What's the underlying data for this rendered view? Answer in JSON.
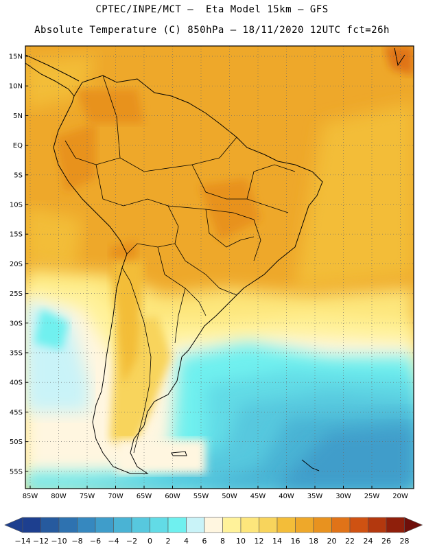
{
  "header": {
    "line1": "CPTEC/INPE/MCT –  Eta Model 15km – GFS",
    "line2": "Absolute Temperature (C) 850hPa – 18/11/2020 12UTC fct=26h"
  },
  "map": {
    "lat_ticks": [
      "15N",
      "10N",
      "5N",
      "EQ",
      "5S",
      "10S",
      "15S",
      "20S",
      "25S",
      "30S",
      "35S",
      "40S",
      "45S",
      "50S",
      "55S"
    ],
    "lon_ticks": [
      "85W",
      "80W",
      "75W",
      "70W",
      "65W",
      "60W",
      "55W",
      "50W",
      "45W",
      "40W",
      "35W",
      "30W",
      "25W",
      "20W"
    ],
    "grid": "dotted",
    "region": "South America",
    "lon_range": [
      -85,
      -20
    ],
    "lat_range": [
      15,
      -55
    ]
  },
  "colorbar": {
    "labels": [
      "-14",
      "-12",
      "-10",
      "-8",
      "-6",
      "-4",
      "-2",
      "0",
      "2",
      "4",
      "6",
      "8",
      "10",
      "12",
      "14",
      "16",
      "18",
      "20",
      "22",
      "24",
      "26",
      "28"
    ],
    "colors": [
      "#1d3f8f",
      "#265a9e",
      "#2e72b0",
      "#3688bf",
      "#3f9dca",
      "#4ab3d4",
      "#57c8de",
      "#62dbe6",
      "#6ff0ef",
      "#c9f3f8",
      "#fff6e0",
      "#fff29a",
      "#fde67c",
      "#f8d45c",
      "#f3bd39",
      "#eea82a",
      "#e8921f",
      "#e07318",
      "#cf5212",
      "#b3380e",
      "#8f1f0b",
      "#6e0f0a"
    ]
  }
}
